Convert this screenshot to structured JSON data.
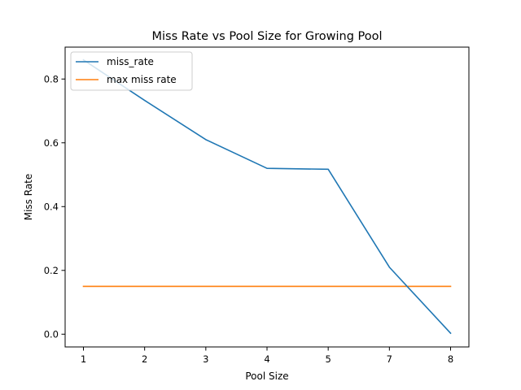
{
  "chart_data": {
    "type": "line",
    "title": "Miss Rate vs Pool Size for Growing Pool",
    "xlabel": "Pool Size",
    "ylabel": "Miss Rate",
    "x_ticks": [
      "1",
      "2",
      "3",
      "4",
      "5",
      "7",
      "8"
    ],
    "y_ticks": [
      "0.0",
      "0.2",
      "0.4",
      "0.6",
      "0.8"
    ],
    "y_tick_values": [
      0.0,
      0.2,
      0.4,
      0.6,
      0.8
    ],
    "ylim": [
      -0.04,
      0.9
    ],
    "x": [
      1,
      2,
      3,
      4,
      5,
      7,
      8
    ],
    "series": [
      {
        "name": "miss_rate",
        "color": "#1f77b4",
        "values": [
          0.86,
          0.733,
          0.61,
          0.52,
          0.517,
          0.21,
          0.003
        ]
      },
      {
        "name": "max miss rate",
        "color": "#ff7f0e",
        "values": [
          0.15,
          0.15,
          0.15,
          0.15,
          0.15,
          0.15,
          0.15
        ]
      }
    ],
    "legend_position": "top-left",
    "grid": false
  }
}
